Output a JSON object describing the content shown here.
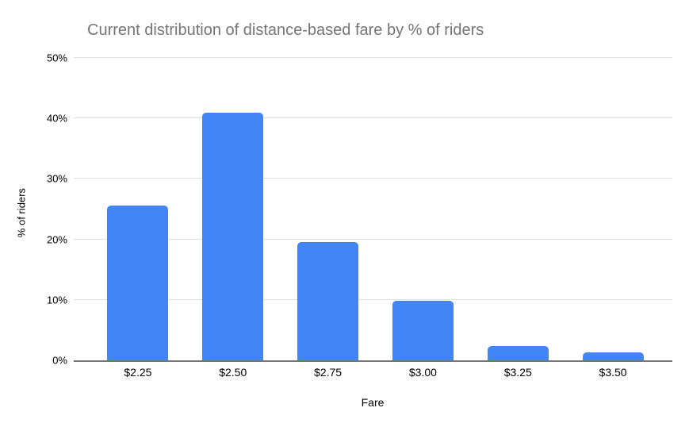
{
  "chart_data": {
    "type": "bar",
    "title": "Current distribution of distance-based fare by % of riders",
    "xlabel": "Fare",
    "ylabel": "% of riders",
    "categories": [
      "$2.25",
      "$2.50",
      "$2.75",
      "$3.00",
      "$3.25",
      "$3.50"
    ],
    "values": [
      25.6,
      41,
      19.6,
      9.8,
      2.3,
      1.3
    ],
    "ylim": [
      0,
      50
    ],
    "yticks": [
      0,
      10,
      20,
      30,
      40,
      50
    ],
    "ytick_labels": [
      "0%",
      "10%",
      "20%",
      "30%",
      "40%",
      "50%"
    ],
    "grid": "horizontal",
    "legend": "none",
    "bar_color": "#4285f4"
  },
  "colors": {
    "title_text": "#757575",
    "axis_text": "#000000",
    "gridline": "#e0e0e0",
    "axis_line": "#757575",
    "bar": "#4285f4",
    "background": "#ffffff"
  }
}
